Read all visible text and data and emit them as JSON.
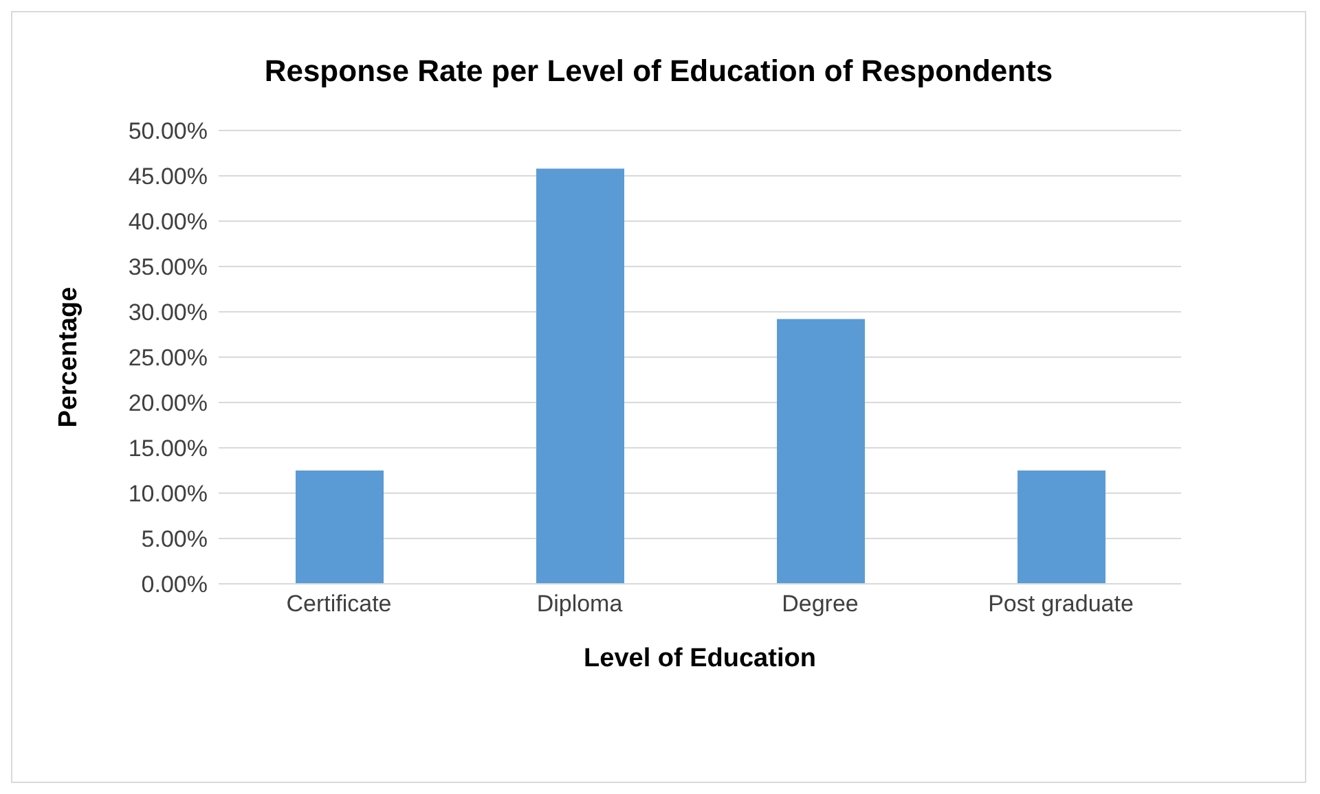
{
  "chart_data": {
    "type": "bar",
    "title": "Response Rate per Level of Education of Respondents",
    "xlabel": "Level of Education",
    "ylabel": "Percentage",
    "categories": [
      "Certificate",
      "Diploma",
      "Degree",
      "Post graduate"
    ],
    "values": [
      12.5,
      45.8,
      29.2,
      12.5
    ],
    "color": "#5b9bd5",
    "ylim": [
      0,
      50
    ],
    "yticks": [
      {
        "value": 0,
        "label": "0.00%"
      },
      {
        "value": 5,
        "label": "5.00%"
      },
      {
        "value": 10,
        "label": "10.00%"
      },
      {
        "value": 15,
        "label": "15.00%"
      },
      {
        "value": 20,
        "label": "20.00%"
      },
      {
        "value": 25,
        "label": "25.00%"
      },
      {
        "value": 30,
        "label": "30.00%"
      },
      {
        "value": 35,
        "label": "35.00%"
      },
      {
        "value": 40,
        "label": "40.00%"
      },
      {
        "value": 45,
        "label": "45.00%"
      },
      {
        "value": 50,
        "label": "50.00%"
      }
    ],
    "grid": "y"
  }
}
